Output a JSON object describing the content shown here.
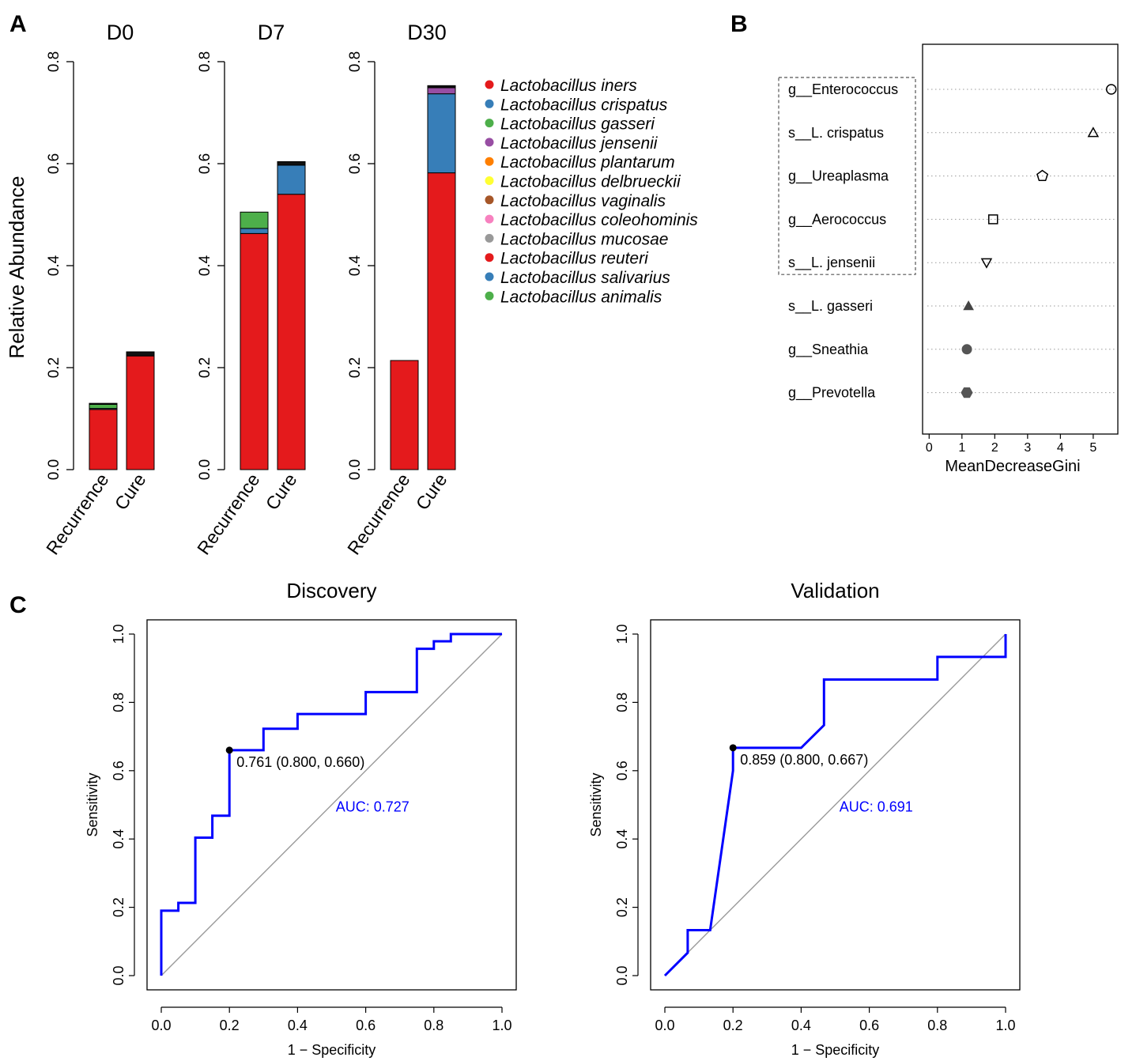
{
  "panels": {
    "A": "A",
    "B": "B",
    "C": "C"
  },
  "chart_data": [
    {
      "id": "A",
      "type": "bar",
      "stacked": true,
      "ylabel": "Relative Abundance",
      "ylim": [
        0,
        0.8
      ],
      "yticks": [
        "0.0",
        "0.2",
        "0.4",
        "0.6",
        "0.8"
      ],
      "categories": [
        "Recurrence",
        "Cure"
      ],
      "subplots": [
        {
          "title": "D0",
          "bars": [
            {
              "category": "Recurrence",
              "segments": [
                {
                  "species": "Lactobacillus iners",
                  "value": 0.118
                },
                {
                  "species": "Lactobacillus crispatus",
                  "value": 0.002
                },
                {
                  "species": "Lactobacillus gasseri",
                  "value": 0.008
                },
                {
                  "species": "other",
                  "value": 0.002
                }
              ]
            },
            {
              "category": "Cure",
              "segments": [
                {
                  "species": "Lactobacillus iners",
                  "value": 0.223
                },
                {
                  "species": "other",
                  "value": 0.008
                }
              ]
            }
          ]
        },
        {
          "title": "D7",
          "bars": [
            {
              "category": "Recurrence",
              "segments": [
                {
                  "species": "Lactobacillus iners",
                  "value": 0.463
                },
                {
                  "species": "Lactobacillus crispatus",
                  "value": 0.01
                },
                {
                  "species": "Lactobacillus gasseri",
                  "value": 0.032
                }
              ]
            },
            {
              "category": "Cure",
              "segments": [
                {
                  "species": "Lactobacillus iners",
                  "value": 0.54
                },
                {
                  "species": "Lactobacillus crispatus",
                  "value": 0.057
                },
                {
                  "species": "other",
                  "value": 0.007
                }
              ]
            }
          ]
        },
        {
          "title": "D30",
          "bars": [
            {
              "category": "Recurrence",
              "segments": [
                {
                  "species": "Lactobacillus iners",
                  "value": 0.214
                }
              ]
            },
            {
              "category": "Cure",
              "segments": [
                {
                  "species": "Lactobacillus iners",
                  "value": 0.582
                },
                {
                  "species": "Lactobacillus crispatus",
                  "value": 0.155
                },
                {
                  "species": "Lactobacillus jensenii",
                  "value": 0.012
                },
                {
                  "species": "other",
                  "value": 0.004
                }
              ]
            }
          ]
        }
      ],
      "legend": [
        {
          "label": "Lactobacillus iners",
          "color": "#e41a1c"
        },
        {
          "label": "Lactobacillus crispatus",
          "color": "#377eb8"
        },
        {
          "label": "Lactobacillus gasseri",
          "color": "#4daf4a"
        },
        {
          "label": "Lactobacillus jensenii",
          "color": "#984ea3"
        },
        {
          "label": "Lactobacillus plantarum",
          "color": "#ff7f00"
        },
        {
          "label": "Lactobacillus delbrueckii",
          "color": "#ffff33"
        },
        {
          "label": "Lactobacillus vaginalis",
          "color": "#a65628"
        },
        {
          "label": "Lactobacillus coleohominis",
          "color": "#f781bf"
        },
        {
          "label": "Lactobacillus mucosae",
          "color": "#999999"
        },
        {
          "label": "Lactobacillus reuteri",
          "color": "#e41a1c"
        },
        {
          "label": "Lactobacillus salivarius",
          "color": "#377eb8"
        },
        {
          "label": "Lactobacillus animalis",
          "color": "#4daf4a"
        }
      ],
      "other_color": "#111111"
    },
    {
      "id": "B",
      "type": "scatter",
      "subtype": "dotchart",
      "xlabel": "MeanDecreaseGini",
      "xlim": [
        -0.2,
        5.75
      ],
      "xticks": [
        "0",
        "1",
        "2",
        "3",
        "4",
        "5"
      ],
      "features": [
        {
          "label": "g__Enterococcus",
          "value": 5.55,
          "marker": "circle-open"
        },
        {
          "label": "s__L. crispatus",
          "value": 5.0,
          "marker": "triangle-open"
        },
        {
          "label": "g__Ureaplasma",
          "value": 3.45,
          "marker": "pentagon-open"
        },
        {
          "label": "g__Aerococcus",
          "value": 1.95,
          "marker": "square-open"
        },
        {
          "label": "s__L. jensenii",
          "value": 1.75,
          "marker": "triangle-down-open"
        },
        {
          "label": "s__L. gasseri",
          "value": 1.2,
          "marker": "triangle-filled"
        },
        {
          "label": "g__Sneathia",
          "value": 1.15,
          "marker": "circle-filled"
        },
        {
          "label": "g__Prevotella",
          "value": 1.15,
          "marker": "hexagon-filled"
        }
      ],
      "highlight_top": 5
    },
    {
      "id": "C1",
      "type": "line",
      "title": "Discovery",
      "xlabel": "1 − Specificity",
      "ylabel": "Sensitivity",
      "xlim": [
        0,
        1
      ],
      "ylim": [
        0,
        1
      ],
      "xticks": [
        "0.0",
        "0.2",
        "0.4",
        "0.6",
        "0.8",
        "1.0"
      ],
      "yticks": [
        "0.0",
        "0.2",
        "0.4",
        "0.6",
        "0.8",
        "1.0"
      ],
      "roc": {
        "x": [
          0,
          0,
          0.05,
          0.05,
          0.1,
          0.1,
          0.15,
          0.15,
          0.2,
          0.2,
          0.3,
          0.3,
          0.4,
          0.4,
          0.6,
          0.6,
          0.75,
          0.75,
          0.8,
          0.8,
          0.85,
          0.85,
          1.0
        ],
        "y": [
          0,
          0.19,
          0.19,
          0.213,
          0.213,
          0.404,
          0.404,
          0.468,
          0.468,
          0.66,
          0.66,
          0.723,
          0.723,
          0.766,
          0.766,
          0.83,
          0.83,
          0.957,
          0.957,
          0.979,
          0.979,
          1.0,
          1.0
        ]
      },
      "best_point": {
        "x": 0.2,
        "y": 0.66,
        "label": "0.761 (0.800, 0.660)"
      },
      "auc_label": "AUC: 0.727",
      "auc_color": "#0000ff",
      "curve_color": "#0000ff",
      "diagonal_color": "#9a9a9a"
    },
    {
      "id": "C2",
      "type": "line",
      "title": "Validation",
      "xlabel": "1 − Specificity",
      "ylabel": "Sensitivity",
      "xlim": [
        0,
        1
      ],
      "ylim": [
        0,
        1
      ],
      "xticks": [
        "0.0",
        "0.2",
        "0.4",
        "0.6",
        "0.8",
        "1.0"
      ],
      "yticks": [
        "0.0",
        "0.2",
        "0.4",
        "0.6",
        "0.8",
        "1.0"
      ],
      "roc": {
        "x": [
          0,
          0.067,
          0.067,
          0.133,
          0.133,
          0.2,
          0.2,
          0.4,
          0.467,
          0.467,
          0.8,
          0.8,
          1.0,
          1.0
        ],
        "y": [
          0,
          0.067,
          0.133,
          0.133,
          0.133,
          0.6,
          0.667,
          0.667,
          0.733,
          0.867,
          0.867,
          0.933,
          0.933,
          1.0
        ]
      },
      "best_point": {
        "x": 0.2,
        "y": 0.667,
        "label": "0.859 (0.800, 0.667)"
      },
      "auc_label": "AUC: 0.691",
      "auc_color": "#0000ff",
      "curve_color": "#0000ff",
      "diagonal_color": "#9a9a9a"
    }
  ]
}
